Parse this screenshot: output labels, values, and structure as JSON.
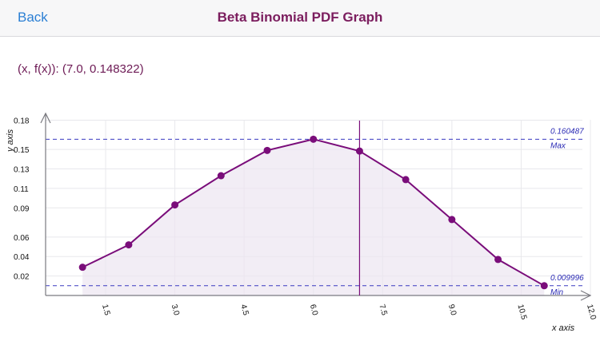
{
  "navbar": {
    "back_label": "Back",
    "title": "Beta Binomial PDF Graph"
  },
  "readout": {
    "text": "(x, f(x)): (7.0, 0.148322)"
  },
  "colors": {
    "accent": "#7b1d5e",
    "link": "#2b7fd4",
    "series": "#7a0d7a",
    "reference_line": "#3a3ac0",
    "fill": "#ece6f1"
  },
  "chart_data": {
    "type": "area",
    "x": [
      1,
      2,
      3,
      4,
      5,
      6,
      7,
      8,
      9,
      10,
      11
    ],
    "y": [
      0.029,
      0.052,
      0.093,
      0.123,
      0.149,
      0.160487,
      0.148322,
      0.119,
      0.078,
      0.037,
      0.009996
    ],
    "xlabel": "x axis",
    "ylabel": "y axis",
    "xlim": [
      0.2,
      12.0
    ],
    "ylim": [
      0.0,
      0.187
    ],
    "x_ticks": [
      "1.5",
      "3.0",
      "4.5",
      "6.0",
      "7.5",
      "9.0",
      "10.5",
      "12.0"
    ],
    "x_tick_values": [
      1.5,
      3.0,
      4.5,
      6.0,
      7.5,
      9.0,
      10.5,
      12.0
    ],
    "y_ticks": [
      "0.02",
      "0.04",
      "0.06",
      "0.09",
      "0.11",
      "0.13",
      "0.15",
      "0.18"
    ],
    "y_tick_values": [
      0.02,
      0.04,
      0.06,
      0.09,
      0.11,
      0.13,
      0.15,
      0.18
    ],
    "max_line": {
      "value": 0.160487,
      "label": "0.160487",
      "tag": "Max"
    },
    "min_line": {
      "value": 0.009996,
      "label": "0.009996",
      "tag": "Min"
    },
    "cursor_x": 7.0,
    "grid": true
  }
}
